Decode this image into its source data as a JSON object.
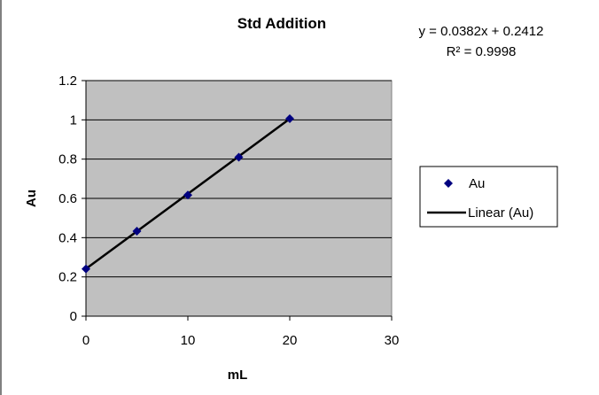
{
  "chart_data": {
    "type": "scatter",
    "title": "Std Addition",
    "xlabel": "mL",
    "ylabel": "Au",
    "xlim": [
      0,
      30
    ],
    "ylim": [
      0,
      1.2
    ],
    "xticks": [
      0,
      10,
      20,
      30
    ],
    "yticks": [
      0,
      0.2,
      0.4,
      0.6,
      0.8,
      1,
      1.2
    ],
    "xtick_labels": [
      "0",
      "10",
      "20",
      "30"
    ],
    "ytick_labels": [
      "0",
      "0.2",
      "0.4",
      "0.6",
      "0.8",
      "1",
      "1.2"
    ],
    "grid": true,
    "legend_position": "right",
    "series": [
      {
        "name": "Au",
        "marker": "diamond",
        "color": "#000080",
        "x": [
          0,
          5,
          10,
          15,
          20
        ],
        "y": [
          0.241,
          0.433,
          0.617,
          0.81,
          1.006
        ]
      }
    ],
    "trendline": {
      "name": "Linear (Au)",
      "color": "#000000",
      "slope": 0.0382,
      "intercept": 0.2412,
      "x_range": [
        0,
        20
      ]
    },
    "annotations": {
      "equation": "y = 0.0382x + 0.2412",
      "r_squared": "R² = 0.9998"
    },
    "colors": {
      "plot_background": "#c0c0c0",
      "grid": "#000000",
      "page_background": "#ffffff"
    }
  }
}
